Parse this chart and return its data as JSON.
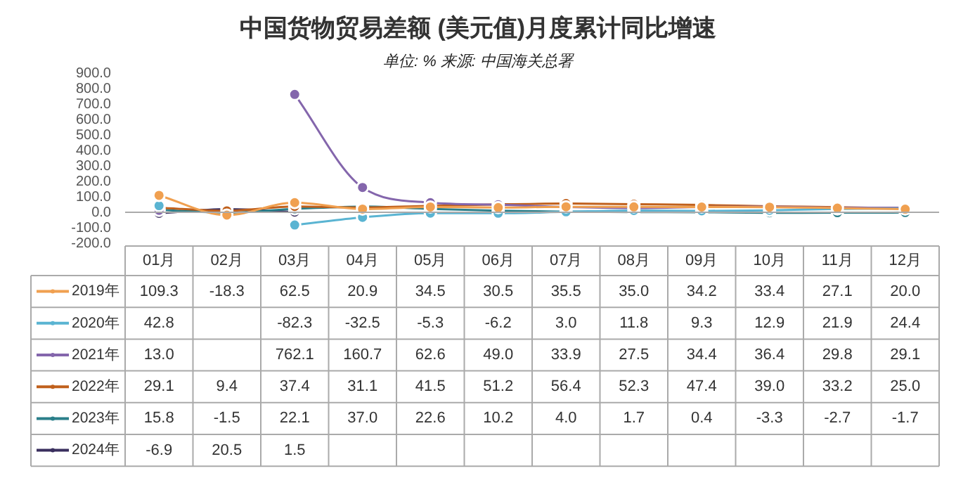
{
  "chart_data": {
    "type": "line",
    "title": "中国货物贸易差额 (美元值)月度累计同比增速",
    "subtitle": "单位: % 来源: 中国海关总署",
    "categories": [
      "01月",
      "02月",
      "03月",
      "04月",
      "05月",
      "06月",
      "07月",
      "08月",
      "09月",
      "10月",
      "11月",
      "12月"
    ],
    "ylim": [
      -200,
      900
    ],
    "yticks": [
      {
        "value": -200,
        "label": "-200.0"
      },
      {
        "value": -100,
        "label": "-100.0"
      },
      {
        "value": 0,
        "label": "0.0"
      },
      {
        "value": 100,
        "label": "100.0"
      },
      {
        "value": 200,
        "label": "200.0"
      },
      {
        "value": 300,
        "label": "300.0"
      },
      {
        "value": 400,
        "label": "400.0"
      },
      {
        "value": 500,
        "label": "500.0"
      },
      {
        "value": 600,
        "label": "600.0"
      },
      {
        "value": 700,
        "label": "700.0"
      },
      {
        "value": 800,
        "label": "800.0"
      },
      {
        "value": 900,
        "label": "900.0"
      }
    ],
    "grid": false,
    "ref_lines": [
      {
        "axis": "y",
        "value": 0,
        "color": "#aaaaaa"
      }
    ],
    "legend": "bottom",
    "marker": "circle",
    "line_style": "solid",
    "series": [
      {
        "name": "2019年",
        "color": "#f0a050",
        "values": [
          109.3,
          -18.3,
          62.5,
          20.9,
          34.5,
          30.5,
          35.5,
          35.0,
          34.2,
          33.4,
          27.1,
          20.0
        ],
        "value_labels": [
          "109.3",
          "-18.3",
          "62.5",
          "20.9",
          "34.5",
          "30.5",
          "35.5",
          "35.0",
          "34.2",
          "33.4",
          "27.1",
          "20.0"
        ]
      },
      {
        "name": "2020年",
        "color": "#5ab4d2",
        "values": [
          42.8,
          null,
          -82.3,
          -32.5,
          -5.3,
          -6.2,
          3.0,
          11.8,
          9.3,
          12.9,
          21.9,
          24.4
        ],
        "value_labels": [
          "42.8",
          null,
          "-82.3",
          "-32.5",
          "-5.3",
          "-6.2",
          "3.0",
          "11.8",
          "9.3",
          "12.9",
          "21.9",
          "24.4"
        ]
      },
      {
        "name": "2021年",
        "color": "#8466ac",
        "values": [
          13.0,
          null,
          762.1,
          160.7,
          62.6,
          49.0,
          33.9,
          27.5,
          34.4,
          36.4,
          29.8,
          29.1
        ],
        "value_labels": [
          "13.0",
          null,
          "762.1",
          "160.7",
          "62.6",
          "49.0",
          "33.9",
          "27.5",
          "34.4",
          "36.4",
          "29.8",
          "29.1"
        ]
      },
      {
        "name": "2022年",
        "color": "#c0601c",
        "values": [
          29.1,
          9.4,
          37.4,
          31.1,
          41.5,
          51.2,
          56.4,
          52.3,
          47.4,
          39.0,
          33.2,
          25.0
        ],
        "value_labels": [
          "29.1",
          "9.4",
          "37.4",
          "31.1",
          "41.5",
          "51.2",
          "56.4",
          "52.3",
          "47.4",
          "39.0",
          "33.2",
          "25.0"
        ]
      },
      {
        "name": "2023年",
        "color": "#2a7f8a",
        "values": [
          15.8,
          -1.5,
          22.1,
          37.0,
          22.6,
          10.2,
          4.0,
          1.7,
          0.4,
          -3.3,
          -2.7,
          -1.7
        ],
        "value_labels": [
          "15.8",
          "-1.5",
          "22.1",
          "37.0",
          "22.6",
          "10.2",
          "4.0",
          "1.7",
          "0.4",
          "-3.3",
          "-2.7",
          "-1.7"
        ]
      },
      {
        "name": "2024年",
        "color": "#3a2f5e",
        "values": [
          -6.9,
          20.5,
          1.5,
          null,
          null,
          null,
          null,
          null,
          null,
          null,
          null,
          null
        ],
        "value_labels": [
          "-6.9",
          "20.5",
          "1.5",
          null,
          null,
          null,
          null,
          null,
          null,
          null,
          null,
          null
        ]
      }
    ]
  }
}
